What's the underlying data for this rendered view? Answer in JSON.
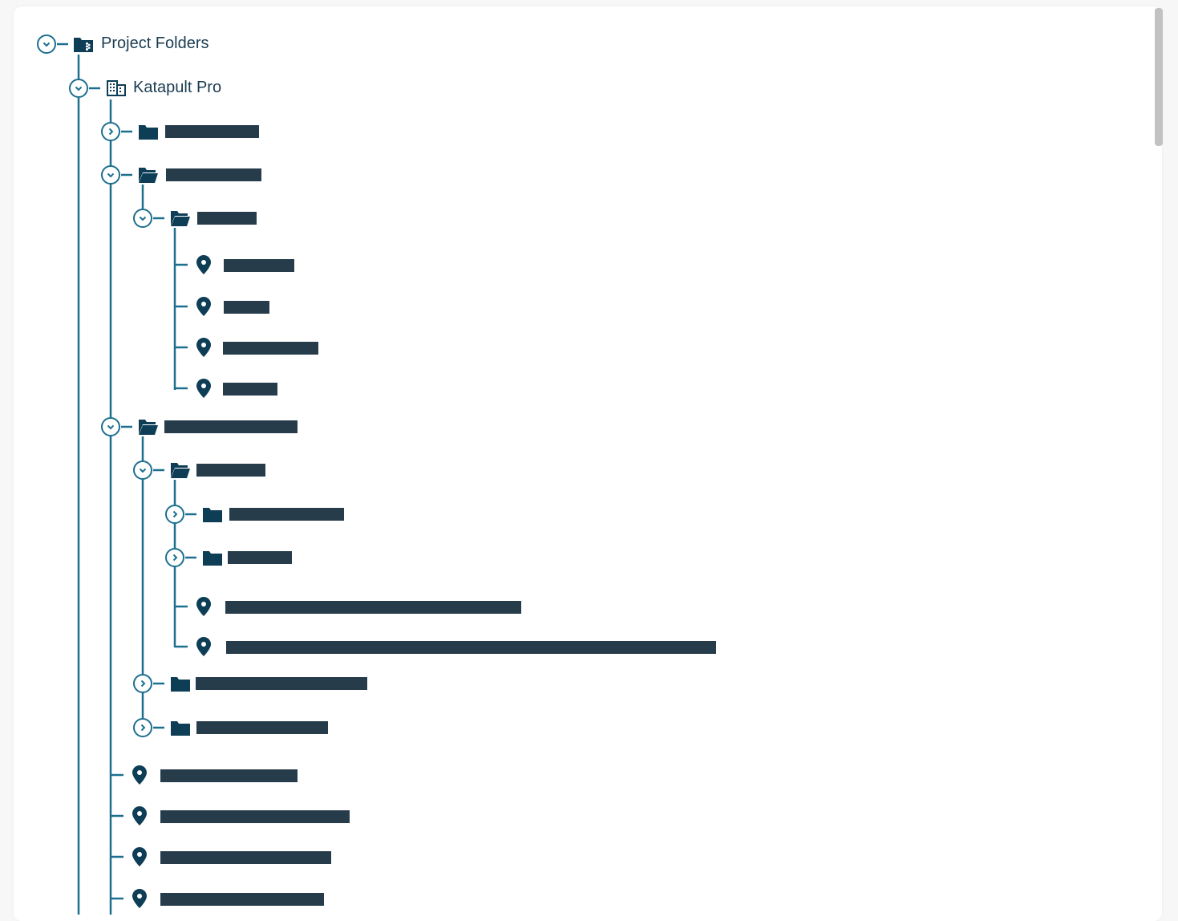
{
  "colors": {
    "line": "#1d6f8f",
    "icon": "#0e3d56",
    "redaction": "#263c4b",
    "text": "#1a3c52"
  },
  "tree": {
    "root": {
      "label": "Project Folders",
      "icon": "folder-shared-icon",
      "expanded": true
    },
    "org": {
      "label": "Katapult Pro",
      "icon": "building-icon",
      "expanded": true
    }
  }
}
